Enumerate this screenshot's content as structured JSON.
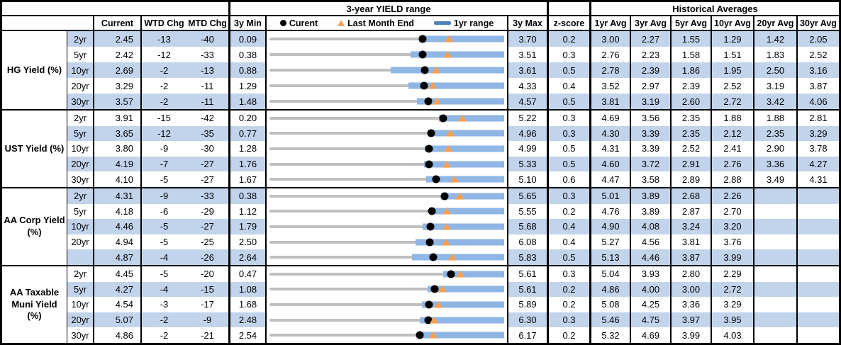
{
  "header": {
    "range_title": "3-year YIELD range",
    "hist_title": "Historical Averages",
    "col_current": "Current",
    "col_wtd": "WTD Chg",
    "col_mtd": "MTD Chg",
    "col_3y_min": "3y Min",
    "col_3y_max": "3y Max",
    "col_zscore": "z-score",
    "avg_cols": [
      "1yr Avg",
      "3yr Avg",
      "5yr Avg",
      "10yr Avg",
      "20yr Avg",
      "30yr Avg"
    ],
    "legend": {
      "current_label": "Curent",
      "last_month_end_label": "Last Month End",
      "range_label": "1yr range"
    }
  },
  "colors": {
    "stripe": "#C2D4EC",
    "bar": "#8FB6E4",
    "legend_swatch": "#4F81BD",
    "triangle": "#F5A054",
    "dot": "#000000",
    "gray_line": "#BFBFBF"
  },
  "chart_data": {
    "type": "range-dot-plot",
    "x_meaning": "yield (%), each row scaled from its own 3y Min to 3y Max",
    "markers": {
      "dot": "Current",
      "triangle": "Last Month End",
      "blue_bar": "1yr range (bar ends at 3y Max)"
    },
    "blocks": [
      {
        "label": "HG Yield (%)",
        "rows": [
          {
            "tenor": "2yr",
            "current": "2.45",
            "wtd_chg": "-13",
            "mtd_chg": "-40",
            "min_3y": "0.09",
            "max_3y": "3.70",
            "z_score": "0.2",
            "last_month_end": 2.85,
            "yr1_low": 2.39,
            "yr1_high": 3.7,
            "averages": [
              "3.00",
              "2.27",
              "1.55",
              "1.29",
              "1.42",
              "2.05"
            ]
          },
          {
            "tenor": "5yr",
            "current": "2.42",
            "wtd_chg": "-12",
            "mtd_chg": "-33",
            "min_3y": "0.38",
            "max_3y": "3.51",
            "z_score": "0.3",
            "last_month_end": 2.75,
            "yr1_low": 2.26,
            "yr1_high": 3.51,
            "averages": [
              "2.76",
              "2.23",
              "1.58",
              "1.51",
              "1.83",
              "2.52"
            ]
          },
          {
            "tenor": "10yr",
            "current": "2.69",
            "wtd_chg": "-2",
            "mtd_chg": "-13",
            "min_3y": "0.88",
            "max_3y": "3.61",
            "z_score": "0.5",
            "last_month_end": 2.82,
            "yr1_low": 2.29,
            "yr1_high": 3.61,
            "averages": [
              "2.78",
              "2.39",
              "1.86",
              "1.95",
              "2.50",
              "3.16"
            ]
          },
          {
            "tenor": "20yr",
            "current": "3.29",
            "wtd_chg": "-2",
            "mtd_chg": "-11",
            "min_3y": "1.29",
            "max_3y": "4.33",
            "z_score": "0.4",
            "last_month_end": 3.4,
            "yr1_low": 3.09,
            "yr1_high": 4.33,
            "averages": [
              "3.52",
              "2.97",
              "2.39",
              "2.52",
              "3.19",
              "3.87"
            ]
          },
          {
            "tenor": "30yr",
            "current": "3.57",
            "wtd_chg": "-2",
            "mtd_chg": "-11",
            "min_3y": "1.48",
            "max_3y": "4.57",
            "z_score": "0.5",
            "last_month_end": 3.68,
            "yr1_low": 3.42,
            "yr1_high": 4.57,
            "averages": [
              "3.81",
              "3.19",
              "2.60",
              "2.72",
              "3.42",
              "4.06"
            ]
          }
        ]
      },
      {
        "label": "UST Yield (%)",
        "rows": [
          {
            "tenor": "2yr",
            "current": "3.91",
            "wtd_chg": "-15",
            "mtd_chg": "-42",
            "min_3y": "0.20",
            "max_3y": "5.22",
            "z_score": "0.3",
            "last_month_end": 4.33,
            "yr1_low": 3.83,
            "yr1_high": 5.22,
            "averages": [
              "4.69",
              "3.56",
              "2.35",
              "1.88",
              "1.88",
              "2.81"
            ]
          },
          {
            "tenor": "5yr",
            "current": "3.65",
            "wtd_chg": "-12",
            "mtd_chg": "-35",
            "min_3y": "0.77",
            "max_3y": "4.96",
            "z_score": "0.3",
            "last_month_end": 4.0,
            "yr1_low": 3.59,
            "yr1_high": 4.96,
            "averages": [
              "4.30",
              "3.39",
              "2.35",
              "2.12",
              "2.35",
              "3.29"
            ]
          },
          {
            "tenor": "10yr",
            "current": "3.80",
            "wtd_chg": "-9",
            "mtd_chg": "-30",
            "min_3y": "1.28",
            "max_3y": "4.99",
            "z_score": "0.5",
            "last_month_end": 4.1,
            "yr1_low": 3.74,
            "yr1_high": 4.99,
            "averages": [
              "4.31",
              "3.39",
              "2.52",
              "2.41",
              "2.90",
              "3.78"
            ]
          },
          {
            "tenor": "20yr",
            "current": "4.19",
            "wtd_chg": "-7",
            "mtd_chg": "-27",
            "min_3y": "1.76",
            "max_3y": "5.33",
            "z_score": "0.5",
            "last_month_end": 4.46,
            "yr1_low": 4.11,
            "yr1_high": 5.33,
            "averages": [
              "4.60",
              "3.72",
              "2.91",
              "2.76",
              "3.36",
              "4.27"
            ]
          },
          {
            "tenor": "30yr",
            "current": "4.10",
            "wtd_chg": "-5",
            "mtd_chg": "-27",
            "min_3y": "1.67",
            "max_3y": "5.10",
            "z_score": "0.6",
            "last_month_end": 4.37,
            "yr1_low": 3.96,
            "yr1_high": 5.1,
            "averages": [
              "4.47",
              "3.58",
              "2.89",
              "2.88",
              "3.49",
              "4.31"
            ]
          }
        ]
      },
      {
        "label": "AA Corp Yield (%)",
        "rows": [
          {
            "tenor": "2yr",
            "current": "4.31",
            "wtd_chg": "-9",
            "mtd_chg": "-33",
            "min_3y": "0.38",
            "max_3y": "5.65",
            "z_score": "0.3",
            "last_month_end": 4.64,
            "yr1_low": 4.24,
            "yr1_high": 5.65,
            "averages": [
              "5.01",
              "3.89",
              "2.68",
              "2.26",
              "",
              ""
            ]
          },
          {
            "tenor": "5yr",
            "current": "4.18",
            "wtd_chg": "-6",
            "mtd_chg": "-29",
            "min_3y": "1.12",
            "max_3y": "5.55",
            "z_score": "0.2",
            "last_month_end": 4.47,
            "yr1_low": 4.15,
            "yr1_high": 5.55,
            "averages": [
              "4.76",
              "3.89",
              "2.87",
              "2.70",
              "",
              ""
            ]
          },
          {
            "tenor": "10yr",
            "current": "4.46",
            "wtd_chg": "-5",
            "mtd_chg": "-27",
            "min_3y": "1.79",
            "max_3y": "5.68",
            "z_score": "0.4",
            "last_month_end": 4.73,
            "yr1_low": 4.33,
            "yr1_high": 5.68,
            "averages": [
              "4.90",
              "4.08",
              "3.24",
              "3.20",
              "",
              ""
            ]
          },
          {
            "tenor": "20yr",
            "current": "4.94",
            "wtd_chg": "-5",
            "mtd_chg": "-25",
            "min_3y": "2.50",
            "max_3y": "6.08",
            "z_score": "0.4",
            "last_month_end": 5.19,
            "yr1_low": 4.73,
            "yr1_high": 6.08,
            "averages": [
              "5.27",
              "4.56",
              "3.81",
              "3.76",
              "",
              ""
            ]
          },
          {
            "tenor": "",
            "current": "4.87",
            "wtd_chg": "-4",
            "mtd_chg": "-26",
            "min_3y": "2.64",
            "max_3y": "5.83",
            "z_score": "0.5",
            "last_month_end": 5.13,
            "yr1_low": 4.58,
            "yr1_high": 5.83,
            "averages": [
              "5.13",
              "4.46",
              "3.87",
              "3.99",
              "",
              ""
            ]
          }
        ]
      },
      {
        "label": "AA Taxable Muni Yield (%)",
        "rows": [
          {
            "tenor": "2yr",
            "current": "4.45",
            "wtd_chg": "-5",
            "mtd_chg": "-20",
            "min_3y": "0.47",
            "max_3y": "5.61",
            "z_score": "0.3",
            "last_month_end": 4.65,
            "yr1_low": 4.27,
            "yr1_high": 5.61,
            "averages": [
              "5.04",
              "3.93",
              "2.80",
              "2.29",
              "",
              ""
            ]
          },
          {
            "tenor": "5yr",
            "current": "4.27",
            "wtd_chg": "-4",
            "mtd_chg": "-15",
            "min_3y": "1.08",
            "max_3y": "5.61",
            "z_score": "0.2",
            "last_month_end": 4.42,
            "yr1_low": 4.13,
            "yr1_high": 5.61,
            "averages": [
              "4.86",
              "4.00",
              "3.00",
              "2.72",
              "",
              ""
            ]
          },
          {
            "tenor": "10yr",
            "current": "4.54",
            "wtd_chg": "-3",
            "mtd_chg": "-17",
            "min_3y": "1.68",
            "max_3y": "5.89",
            "z_score": "0.2",
            "last_month_end": 4.71,
            "yr1_low": 4.42,
            "yr1_high": 5.89,
            "averages": [
              "5.08",
              "4.25",
              "3.36",
              "3.29",
              "",
              ""
            ]
          },
          {
            "tenor": "20yr",
            "current": "5.07",
            "wtd_chg": "-2",
            "mtd_chg": "-9",
            "min_3y": "2.48",
            "max_3y": "6.30",
            "z_score": "0.3",
            "last_month_end": 5.16,
            "yr1_low": 4.93,
            "yr1_high": 6.3,
            "averages": [
              "5.46",
              "4.75",
              "3.97",
              "3.95",
              "",
              ""
            ]
          },
          {
            "tenor": "30yr",
            "current": "4.86",
            "wtd_chg": "-2",
            "mtd_chg": "-21",
            "min_3y": "2.54",
            "max_3y": "6.17",
            "z_score": "0.2",
            "last_month_end": 5.07,
            "yr1_low": 4.82,
            "yr1_high": 6.17,
            "averages": [
              "5.32",
              "4.69",
              "3.99",
              "4.03",
              "",
              ""
            ]
          }
        ]
      }
    ]
  }
}
